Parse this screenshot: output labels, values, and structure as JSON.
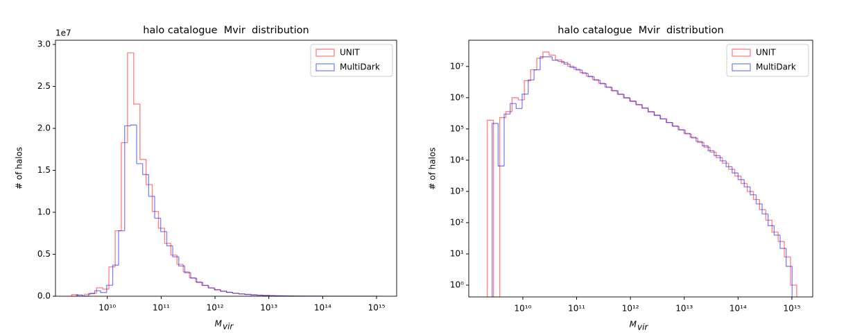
{
  "chart_data": [
    {
      "type": "histogram",
      "title": "halo catalogue  Mvir  distribution",
      "xlabel": "M",
      "xlabel_sub": "vir",
      "ylabel": "# of halos",
      "xscale": "log",
      "yscale": "linear",
      "y_offset_label": "1e7",
      "legend": "upper right",
      "alpha": 0.5,
      "xlim": [
        1090000000.0,
        2360000000000000.0
      ],
      "ylim": [
        0,
        30500000
      ],
      "xticks": [
        {
          "value": 10000000000.0,
          "label": "10¹⁰"
        },
        {
          "value": 100000000000.0,
          "label": "10¹¹"
        },
        {
          "value": 1000000000000.0,
          "label": "10¹²"
        },
        {
          "value": 10000000000000.0,
          "label": "10¹³"
        },
        {
          "value": 100000000000000.0,
          "label": "10¹⁴"
        },
        {
          "value": 1000000000000000.0,
          "label": "10¹⁵"
        }
      ],
      "yticks": [
        {
          "value": 0,
          "label": "0.0"
        },
        {
          "value": 5000000,
          "label": "0.5"
        },
        {
          "value": 10000000,
          "label": "1.0"
        },
        {
          "value": 15000000,
          "label": "1.5"
        },
        {
          "value": 20000000,
          "label": "2.0"
        },
        {
          "value": 25000000,
          "label": "2.5"
        },
        {
          "value": 30000000,
          "label": "3.0"
        }
      ],
      "series": [
        {
          "name": "UNIT",
          "color": "#ff0000",
          "bins": [
            2190000000.0,
            2850000000.0,
            3720000000.0,
            4840000000.0,
            6310000000.0,
            8220000000.0,
            10700000000.0,
            14000000000.0,
            18200000000.0,
            23700000000.0,
            30900000000.0,
            40300000000.0,
            52500000000.0,
            68400000000.0,
            89100000000.0,
            116000000000.0,
            151000000000.0,
            197000000000.0,
            257000000000.0,
            335000000000.0,
            437000000000.0,
            569000000000.0,
            741000000000.0,
            966000000000.0,
            1260000000000.0,
            1640000000000.0,
            2140000000000.0,
            2790000000000.0,
            3630000000000.0,
            4730000000000.0,
            6170000000000.0,
            8040000000000.0,
            10500000000000.0,
            13600000000000.0,
            17800000000000.0,
            23200000000000.0,
            30200000000000.0,
            39400000000000.0,
            51300000000000.0,
            66800000000000.0,
            87100000000000.0,
            114000000000000.0,
            148000000000000.0,
            193000000000000.0,
            251000000000000.0,
            327000000000000.0,
            427000000000000.0,
            556000000000000.0,
            724000000000000.0,
            944000000000000.0,
            1230000000000000.0
          ],
          "values": [
            190000,
            0,
            230000,
            360000,
            1000000,
            850000,
            3500000,
            7800000,
            18300000,
            29000000,
            22900000,
            16300000,
            13300000,
            10100000,
            8100000,
            6300000,
            4900000,
            3800000,
            2900000,
            2200000,
            1700000,
            1300000,
            1000000,
            790000,
            610000,
            470000,
            360000,
            280000,
            210000,
            160000,
            120000,
            92000,
            69000,
            51000,
            37000,
            26000,
            18000,
            12000,
            8000,
            5100,
            3100,
            1800,
            1000,
            550,
            260,
            120,
            50,
            25,
            8,
            1
          ]
        },
        {
          "name": "MultiDark",
          "color": "#0000ff",
          "bins": [
            2690000000.0,
            3480000000.0,
            4500000000.0,
            5820000000.0,
            7520000000.0,
            9720000000.0,
            12600000000.0,
            16200000000.0,
            21000000000.0,
            27100000000.0,
            35100000000.0,
            45400000000.0,
            58600000000.0,
            75800000000.0,
            98000000000.0,
            127000000000.0,
            164000000000.0,
            212000000000.0,
            274000000000.0,
            354000000000.0,
            457000000000.0,
            591000000000.0,
            764000000000.0,
            987000000000.0,
            1280000000000.0,
            1650000000000.0,
            2130000000000.0,
            2760000000000.0,
            3560000000000.0,
            4610000000000.0,
            5960000000000.0,
            7700000000000.0,
            9950000000000.0,
            12900000000000.0,
            16600000000000.0,
            21500000000000.0,
            27800000000000.0,
            35900000000000.0,
            46500000000000.0,
            60100000000000.0,
            77600000000000.0,
            100000000000000.0,
            130000000000000.0,
            168000000000000.0,
            217000000000000.0,
            280000000000000.0,
            362000000000000.0,
            468000000000000.0,
            605000000000000.0,
            783000000000000.0,
            1010000000000000.0
          ],
          "values": [
            150000,
            6500,
            300000,
            650000,
            450000,
            1300000,
            3700000,
            7800000,
            20300000,
            20400000,
            15800000,
            14500000,
            11900000,
            9300000,
            7700000,
            6000000,
            4700000,
            3600000,
            2800000,
            2150000,
            1650000,
            1280000,
            980000,
            760000,
            590000,
            460000,
            350000,
            270000,
            210000,
            160000,
            125000,
            95000,
            72000,
            54000,
            40000,
            29000,
            20000,
            14000,
            9500,
            6200,
            3900,
            2400,
            1400,
            780,
            400,
            190,
            80,
            40,
            15,
            4
          ]
        }
      ]
    },
    {
      "type": "histogram",
      "title": "halo catalogue  Mvir  distribution",
      "xlabel": "M",
      "xlabel_sub": "vir",
      "ylabel": "# of halos",
      "xscale": "log",
      "yscale": "log",
      "legend": "upper right",
      "alpha": 0.5,
      "xlim": [
        990000000.0,
        2440000000000000.0
      ],
      "ylim": [
        0.42,
        69000000
      ],
      "xticks": [
        {
          "value": 10000000000.0,
          "label": "10¹⁰"
        },
        {
          "value": 100000000000.0,
          "label": "10¹¹"
        },
        {
          "value": 1000000000000.0,
          "label": "10¹²"
        },
        {
          "value": 10000000000000.0,
          "label": "10¹³"
        },
        {
          "value": 100000000000000.0,
          "label": "10¹⁴"
        },
        {
          "value": 1000000000000000.0,
          "label": "10¹⁵"
        }
      ],
      "yticks": [
        {
          "value": 1,
          "label": "10⁰"
        },
        {
          "value": 10,
          "label": "10¹"
        },
        {
          "value": 100,
          "label": "10²"
        },
        {
          "value": 1000,
          "label": "10³"
        },
        {
          "value": 10000,
          "label": "10⁴"
        },
        {
          "value": 100000,
          "label": "10⁵"
        },
        {
          "value": 1000000,
          "label": "10⁶"
        },
        {
          "value": 10000000,
          "label": "10⁷"
        }
      ],
      "series": [
        {
          "name": "UNIT",
          "color": "#ff0000",
          "bins": [
            2190000000.0,
            2850000000.0,
            3720000000.0,
            4840000000.0,
            6310000000.0,
            8220000000.0,
            10700000000.0,
            14000000000.0,
            18200000000.0,
            23700000000.0,
            30900000000.0,
            40300000000.0,
            52500000000.0,
            68400000000.0,
            89100000000.0,
            116000000000.0,
            151000000000.0,
            197000000000.0,
            257000000000.0,
            335000000000.0,
            437000000000.0,
            569000000000.0,
            741000000000.0,
            966000000000.0,
            1260000000000.0,
            1640000000000.0,
            2140000000000.0,
            2790000000000.0,
            3630000000000.0,
            4730000000000.0,
            6170000000000.0,
            8040000000000.0,
            10500000000000.0,
            13600000000000.0,
            17800000000000.0,
            23200000000000.0,
            30200000000000.0,
            39400000000000.0,
            51300000000000.0,
            66800000000000.0,
            87100000000000.0,
            114000000000000.0,
            148000000000000.0,
            193000000000000.0,
            251000000000000.0,
            327000000000000.0,
            427000000000000.0,
            556000000000000.0,
            724000000000000.0,
            944000000000000.0,
            1230000000000000.0
          ],
          "values": [
            190000,
            0,
            230000,
            360000,
            1000000,
            850000,
            3500000,
            7800000,
            18300000,
            29000000,
            22900000,
            16300000,
            13300000,
            10100000,
            8100000,
            6300000,
            4900000,
            3800000,
            2900000,
            2200000,
            1700000,
            1300000,
            1000000,
            790000,
            610000,
            470000,
            360000,
            280000,
            210000,
            160000,
            120000,
            92000,
            69000,
            51000,
            37000,
            26000,
            18000,
            12000,
            8000,
            5100,
            3100,
            1800,
            1000,
            550,
            260,
            120,
            50,
            25,
            8,
            1
          ]
        },
        {
          "name": "MultiDark",
          "color": "#0000ff",
          "bins": [
            2690000000.0,
            3480000000.0,
            4500000000.0,
            5820000000.0,
            7520000000.0,
            9720000000.0,
            12600000000.0,
            16200000000.0,
            21000000000.0,
            27100000000.0,
            35100000000.0,
            45400000000.0,
            58600000000.0,
            75800000000.0,
            98000000000.0,
            127000000000.0,
            164000000000.0,
            212000000000.0,
            274000000000.0,
            354000000000.0,
            457000000000.0,
            591000000000.0,
            764000000000.0,
            987000000000.0,
            1280000000000.0,
            1650000000000.0,
            2130000000000.0,
            2760000000000.0,
            3560000000000.0,
            4610000000000.0,
            5960000000000.0,
            7700000000000.0,
            9950000000000.0,
            12900000000000.0,
            16600000000000.0,
            21500000000000.0,
            27800000000000.0,
            35900000000000.0,
            46500000000000.0,
            60100000000000.0,
            77600000000000.0,
            100000000000000.0,
            130000000000000.0,
            168000000000000.0,
            217000000000000.0,
            280000000000000.0,
            362000000000000.0,
            468000000000000.0,
            605000000000000.0,
            783000000000000.0,
            1010000000000000.0
          ],
          "values": [
            150000,
            6500,
            300000,
            650000,
            450000,
            1300000,
            3700000,
            7800000,
            20300000,
            20400000,
            15800000,
            14500000,
            11900000,
            9300000,
            7700000,
            6000000,
            4700000,
            3600000,
            2800000,
            2150000,
            1650000,
            1280000,
            980000,
            760000,
            590000,
            460000,
            350000,
            270000,
            210000,
            160000,
            125000,
            95000,
            72000,
            54000,
            40000,
            29000,
            20000,
            14000,
            9500,
            6200,
            3900,
            2400,
            1400,
            780,
            400,
            190,
            80,
            40,
            15,
            4
          ]
        }
      ]
    }
  ]
}
